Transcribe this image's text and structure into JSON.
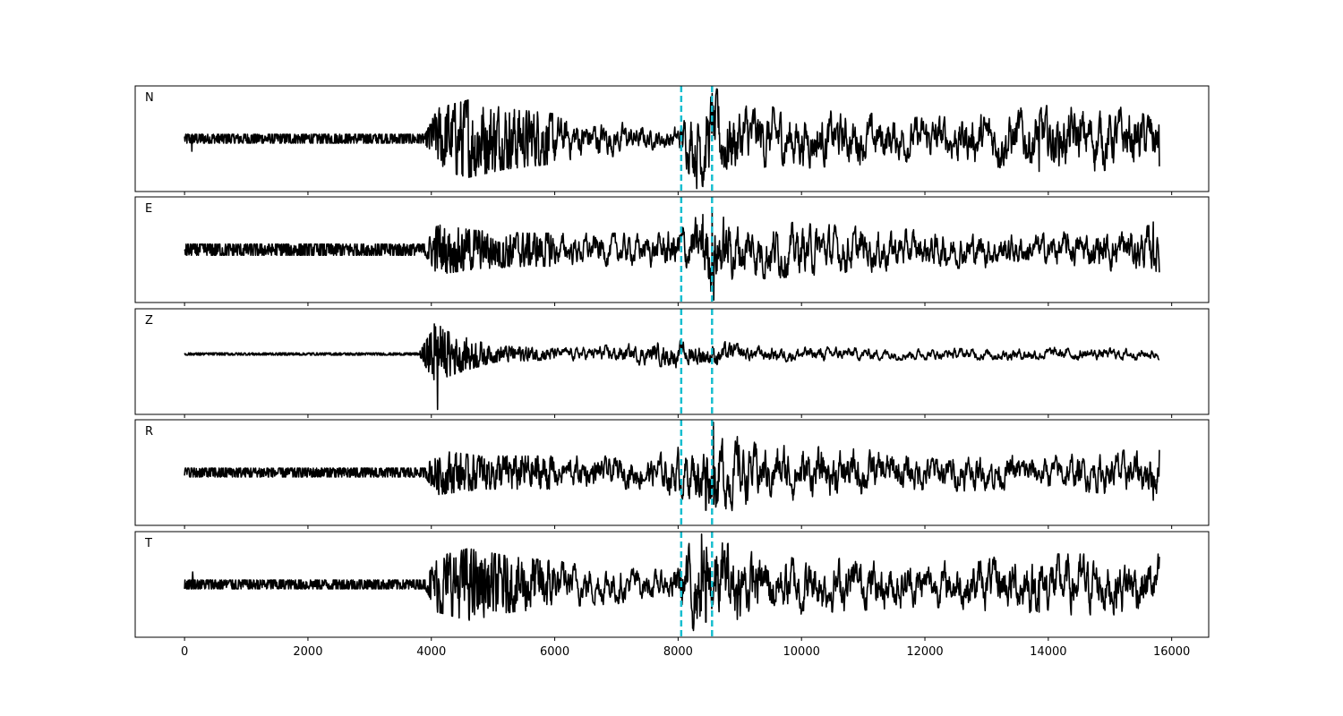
{
  "chart_data": {
    "type": "line",
    "xlabel": "",
    "ylabel": "",
    "xlim": [
      -800,
      16600
    ],
    "x_ticks": [
      0,
      2000,
      4000,
      6000,
      8000,
      10000,
      12000,
      14000,
      16000
    ],
    "x_tick_labels": [
      "0",
      "2000",
      "4000",
      "6000",
      "8000",
      "10000",
      "12000",
      "14000",
      "16000"
    ],
    "x_range": [
      0,
      15800
    ],
    "line_color": "#000000",
    "marker_color": "#17becf",
    "markers": [
      8050,
      8550
    ],
    "panels": [
      {
        "label": "N",
        "ylim": [
          -1.05,
          1.05
        ],
        "envelope": [
          [
            0,
            0.08
          ],
          [
            3900,
            0.08
          ],
          [
            4100,
            0.55
          ],
          [
            4600,
            0.7
          ],
          [
            5200,
            0.55
          ],
          [
            6000,
            0.45
          ],
          [
            6800,
            0.35
          ],
          [
            7600,
            0.2
          ],
          [
            8000,
            0.25
          ],
          [
            8300,
            0.9
          ],
          [
            8700,
            0.9
          ],
          [
            9200,
            0.6
          ],
          [
            10500,
            0.5
          ],
          [
            12000,
            0.4
          ],
          [
            13500,
            0.55
          ],
          [
            14000,
            0.6
          ],
          [
            15800,
            0.55
          ]
        ],
        "spikes": [
          [
            120,
            -0.25
          ],
          [
            4500,
            -0.7
          ],
          [
            8400,
            -0.95
          ],
          [
            8550,
            0.9
          ],
          [
            8750,
            -0.55
          ],
          [
            13850,
            -0.65
          ],
          [
            15800,
            -0.55
          ]
        ]
      },
      {
        "label": "E",
        "ylim": [
          -1.05,
          1.05
        ],
        "envelope": [
          [
            0,
            0.1
          ],
          [
            3900,
            0.1
          ],
          [
            4100,
            0.45
          ],
          [
            4700,
            0.35
          ],
          [
            5500,
            0.3
          ],
          [
            7500,
            0.3
          ],
          [
            8200,
            0.5
          ],
          [
            8500,
            0.8
          ],
          [
            9000,
            0.55
          ],
          [
            10500,
            0.45
          ],
          [
            12000,
            0.35
          ],
          [
            14000,
            0.3
          ],
          [
            15800,
            0.45
          ]
        ],
        "spikes": [
          [
            8400,
            0.7
          ],
          [
            8550,
            0.75
          ],
          [
            8580,
            -1.0
          ],
          [
            15700,
            0.55
          ],
          [
            15800,
            -0.45
          ]
        ]
      },
      {
        "label": "Z",
        "ylim": [
          -1.2,
          0.9
        ],
        "envelope": [
          [
            0,
            0.02
          ],
          [
            3800,
            0.02
          ],
          [
            4050,
            0.5
          ],
          [
            4400,
            0.35
          ],
          [
            5000,
            0.15
          ],
          [
            6000,
            0.1
          ],
          [
            7400,
            0.2
          ],
          [
            8000,
            0.25
          ],
          [
            8600,
            0.25
          ],
          [
            9200,
            0.15
          ],
          [
            12000,
            0.1
          ],
          [
            14000,
            0.12
          ],
          [
            15800,
            0.1
          ]
        ],
        "spikes": [
          [
            4050,
            0.6
          ],
          [
            4100,
            -1.1
          ],
          [
            4150,
            0.55
          ]
        ]
      },
      {
        "label": "R",
        "ylim": [
          -1.05,
          1.05
        ],
        "envelope": [
          [
            0,
            0.08
          ],
          [
            3900,
            0.08
          ],
          [
            4100,
            0.4
          ],
          [
            4800,
            0.3
          ],
          [
            6000,
            0.3
          ],
          [
            7500,
            0.3
          ],
          [
            8300,
            0.55
          ],
          [
            8600,
            0.8
          ],
          [
            9200,
            0.55
          ],
          [
            10500,
            0.45
          ],
          [
            12000,
            0.35
          ],
          [
            14000,
            0.3
          ],
          [
            15800,
            0.45
          ]
        ],
        "spikes": [
          [
            8450,
            -0.75
          ],
          [
            8570,
            1.0
          ],
          [
            15700,
            -0.55
          ],
          [
            15800,
            0.45
          ]
        ]
      },
      {
        "label": "T",
        "ylim": [
          -1.05,
          1.05
        ],
        "envelope": [
          [
            0,
            0.08
          ],
          [
            3900,
            0.08
          ],
          [
            4100,
            0.5
          ],
          [
            4600,
            0.65
          ],
          [
            5300,
            0.5
          ],
          [
            6200,
            0.4
          ],
          [
            7000,
            0.35
          ],
          [
            7800,
            0.25
          ],
          [
            8300,
            0.9
          ],
          [
            8700,
            0.9
          ],
          [
            9200,
            0.6
          ],
          [
            10500,
            0.5
          ],
          [
            12000,
            0.4
          ],
          [
            13800,
            0.55
          ],
          [
            15800,
            0.55
          ]
        ],
        "spikes": [
          [
            130,
            0.25
          ],
          [
            4700,
            -0.6
          ],
          [
            8380,
            1.0
          ],
          [
            8450,
            -0.75
          ],
          [
            8800,
            0.8
          ],
          [
            13850,
            -0.55
          ],
          [
            15800,
            0.55
          ]
        ]
      }
    ]
  }
}
